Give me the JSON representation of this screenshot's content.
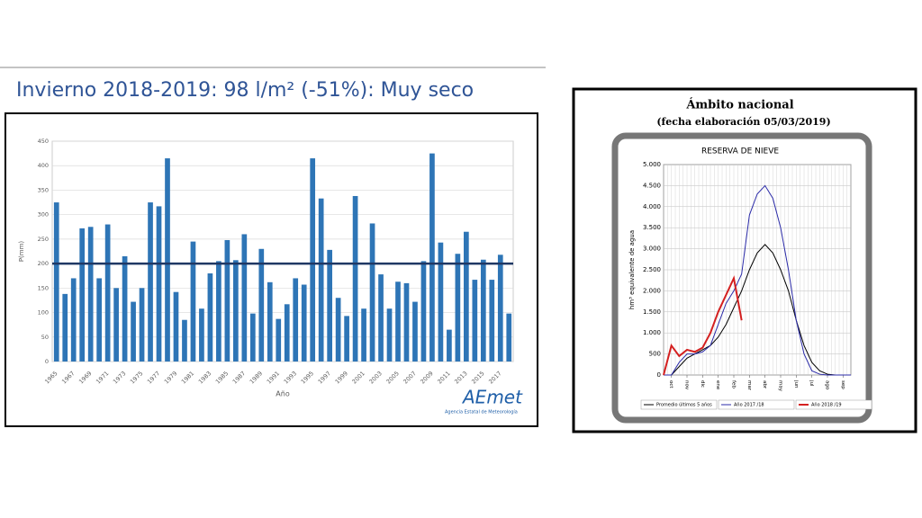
{
  "title": "Invierno 2018-2019: 98 l/m² (-51%): Muy seco",
  "logo": {
    "name": "AEmet",
    "subtitle": "Agencia Estatal de Meteorología"
  },
  "chart_data": [
    {
      "type": "bar",
      "x_label": "Año",
      "y_label": "P(mm)",
      "color": "#2e75b6",
      "categories": [
        "1965",
        null,
        "1967",
        null,
        "1969",
        null,
        "1971",
        null,
        "1973",
        null,
        "1975",
        null,
        "1977",
        null,
        "1979",
        null,
        "1981",
        null,
        "1983",
        null,
        "1985",
        null,
        "1987",
        null,
        "1989",
        null,
        "1991",
        null,
        "1993",
        null,
        "1995",
        null,
        "1997",
        null,
        "1999",
        null,
        "2001",
        null,
        "2003",
        null,
        "2005",
        null,
        "2007",
        null,
        "2009",
        null,
        "2011",
        null,
        "2013",
        null,
        "2015",
        null,
        "2017",
        null
      ],
      "values": [
        325,
        138,
        170,
        272,
        275,
        170,
        280,
        150,
        215,
        122,
        150,
        325,
        317,
        415,
        142,
        85,
        245,
        108,
        180,
        205,
        248,
        207,
        260,
        98,
        230,
        162,
        87,
        117,
        170,
        157,
        415,
        333,
        228,
        130,
        93,
        338,
        108,
        282,
        178,
        108,
        163,
        160,
        122,
        205,
        425,
        243,
        65,
        220,
        265,
        167,
        208,
        167,
        218,
        98
      ],
      "reference_line": 200,
      "reference_color": "#1f3864",
      "ylim": [
        0,
        450
      ],
      "yticks": [
        0,
        50,
        100,
        150,
        200,
        250,
        300,
        350,
        400,
        450
      ],
      "grid": true
    },
    {
      "type": "line",
      "title": "Ámbito nacional",
      "subtitle": "(fecha elaboración 05/03/2019)",
      "panel_title": "RESERVA DE NIEVE",
      "y_label": "hm³ equivalente de agua",
      "x": [
        0,
        0.5,
        1,
        1.5,
        2,
        2.5,
        3,
        3.5,
        4,
        4.5,
        5,
        5.5,
        6,
        6.5,
        7,
        7.5,
        8,
        8.5,
        9,
        9.5,
        10,
        10.5,
        11,
        11.5,
        12
      ],
      "series": [
        {
          "name": "Promedio últimos 5 años",
          "color": "#000000",
          "values": [
            0,
            0,
            200,
            400,
            500,
            600,
            700,
            900,
            1200,
            1600,
            2000,
            2500,
            2900,
            3100,
            2900,
            2500,
            2000,
            1300,
            700,
            300,
            100,
            20,
            0,
            0,
            0
          ]
        },
        {
          "name": "Año 2017 /18",
          "color": "#2b2ba8",
          "values": [
            0,
            0,
            300,
            500,
            500,
            550,
            700,
            1200,
            1700,
            2000,
            2400,
            3800,
            4300,
            4500,
            4200,
            3500,
            2500,
            1300,
            500,
            100,
            20,
            0,
            0,
            0,
            0
          ]
        },
        {
          "name": "Año 2018 /19",
          "color": "#d42020",
          "values": [
            0,
            700,
            450,
            600,
            550,
            650,
            1000,
            1500,
            1900,
            2300,
            1300,
            null,
            null,
            null,
            null,
            null,
            null,
            null,
            null,
            null,
            null,
            null,
            null,
            null,
            null
          ]
        }
      ],
      "xlim": [
        0,
        12
      ],
      "xticks": [
        {
          "value": 0.5,
          "label": "oct"
        },
        {
          "value": 1.5,
          "label": "nov"
        },
        {
          "value": 2.5,
          "label": "dic"
        },
        {
          "value": 3.5,
          "label": "ene"
        },
        {
          "value": 4.5,
          "label": "feb"
        },
        {
          "value": 5.5,
          "label": "mar"
        },
        {
          "value": 6.5,
          "label": "abr"
        },
        {
          "value": 7.5,
          "label": "may"
        },
        {
          "value": 8.5,
          "label": "jun"
        },
        {
          "value": 9.5,
          "label": "jul"
        },
        {
          "value": 10.5,
          "label": "ago"
        },
        {
          "value": 11.5,
          "label": "sep"
        }
      ],
      "ylim": [
        0,
        5000
      ],
      "yticks": [
        0,
        500,
        {
          "value": 1000,
          "label": "1.000"
        },
        {
          "value": 1500,
          "label": "1.500"
        },
        {
          "value": 2000,
          "label": "2.000"
        },
        {
          "value": 2500,
          "label": "2.500"
        },
        {
          "value": 3000,
          "label": "3.000"
        },
        {
          "value": 3500,
          "label": "3.500"
        },
        {
          "value": 4000,
          "label": "4.000"
        },
        {
          "value": 4500,
          "label": "4.500"
        },
        {
          "value": 5000,
          "label": "5.000"
        }
      ],
      "grid": true
    }
  ]
}
